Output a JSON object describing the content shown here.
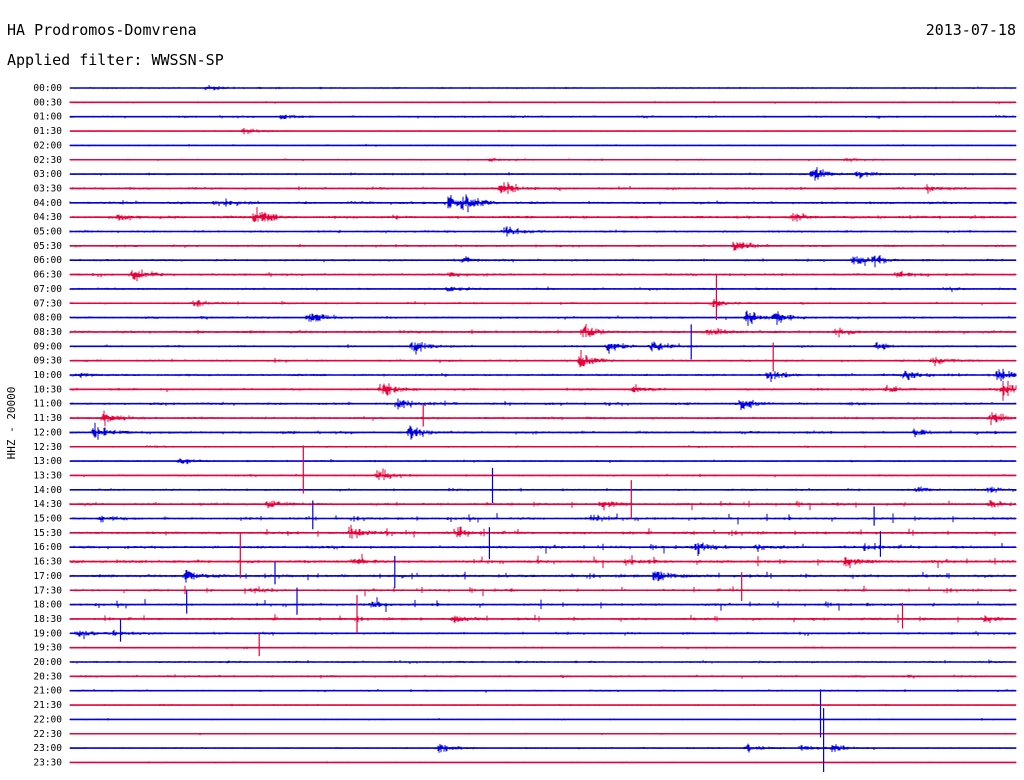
{
  "header": {
    "station": "HA Prodromos-Domvrena",
    "date": "2013-07-18",
    "filter": "Applied filter: WWSSN-SP"
  },
  "channel_label": "HHZ - 20000",
  "colors": {
    "even_trace": "#0000e0",
    "odd_trace": "#e8003a",
    "background": "#ffffff"
  },
  "chart_data": {
    "type": "line",
    "title": "HA Prodromos-Domvrena",
    "ylabel": "HHZ - 20000",
    "grid": false,
    "row_labels": [
      "00:00",
      "00:30",
      "01:00",
      "01:30",
      "02:00",
      "02:30",
      "03:00",
      "03:30",
      "04:00",
      "04:30",
      "05:00",
      "05:30",
      "06:00",
      "06:30",
      "07:00",
      "07:30",
      "08:00",
      "08:30",
      "09:00",
      "09:30",
      "10:00",
      "10:30",
      "11:00",
      "11:30",
      "12:00",
      "12:30",
      "13:00",
      "13:30",
      "14:00",
      "14:30",
      "15:00",
      "15:30",
      "16:00",
      "16:30",
      "17:00",
      "17:30",
      "18:00",
      "18:30",
      "19:00",
      "19:30",
      "20:00",
      "20:30",
      "21:00",
      "21:30",
      "22:00",
      "22:30",
      "23:00",
      "23:30"
    ],
    "trace_minutes": 30,
    "noise_level": [
      0.8,
      0.8,
      1.0,
      0.6,
      0.7,
      0.8,
      1.0,
      1.4,
      1.5,
      1.6,
      1.2,
      1.1,
      1.2,
      1.3,
      1.1,
      1.1,
      1.2,
      1.5,
      1.1,
      1.2,
      1.3,
      1.3,
      1.4,
      1.3,
      1.4,
      0.9,
      1.0,
      1.0,
      1.1,
      1.4,
      1.4,
      1.5,
      1.6,
      1.7,
      1.6,
      1.2,
      1.3,
      1.4,
      1.3,
      0.9,
      1.1,
      1.3,
      1.0,
      0.7,
      0.6,
      0.7,
      0.8,
      0.6
    ],
    "events": [
      {
        "row": 0,
        "min": 4.4,
        "amp": 3
      },
      {
        "row": 2,
        "min": 6.7,
        "amp": 5
      },
      {
        "row": 2,
        "min": 13.8,
        "amp": 2
      },
      {
        "row": 3,
        "min": 5.5,
        "amp": 5
      },
      {
        "row": 5,
        "min": 13.3,
        "amp": 3
      },
      {
        "row": 5,
        "min": 24.6,
        "amp": 3
      },
      {
        "row": 6,
        "min": 23.6,
        "amp": 12
      },
      {
        "row": 6,
        "min": 25.0,
        "amp": 6
      },
      {
        "row": 7,
        "min": 13.7,
        "amp": 12
      },
      {
        "row": 7,
        "min": 27.2,
        "amp": 5
      },
      {
        "row": 8,
        "min": 4.6,
        "amp": 5
      },
      {
        "row": 8,
        "min": 12.0,
        "amp": 12
      },
      {
        "row": 8,
        "min": 12.5,
        "amp": 10
      },
      {
        "row": 9,
        "min": 1.6,
        "amp": 5
      },
      {
        "row": 9,
        "min": 5.9,
        "amp": 14
      },
      {
        "row": 9,
        "min": 22.9,
        "amp": 5
      },
      {
        "row": 10,
        "min": 13.8,
        "amp": 10
      },
      {
        "row": 11,
        "min": 21.1,
        "amp": 11
      },
      {
        "row": 12,
        "min": 24.9,
        "amp": 11
      },
      {
        "row": 12,
        "min": 25.5,
        "amp": 6
      },
      {
        "row": 12,
        "min": 12.5,
        "amp": 4
      },
      {
        "row": 13,
        "min": 2.0,
        "amp": 10
      },
      {
        "row": 13,
        "min": 12.1,
        "amp": 4
      },
      {
        "row": 13,
        "min": 26.2,
        "amp": 5
      },
      {
        "row": 14,
        "min": 12.0,
        "amp": 4
      },
      {
        "row": 14,
        "min": 27.9,
        "amp": 3
      },
      {
        "row": 15,
        "min": 3.9,
        "amp": 6
      },
      {
        "row": 15,
        "min": 20.4,
        "amp": 6
      },
      {
        "row": 16,
        "min": 7.6,
        "amp": 10
      },
      {
        "row": 16,
        "min": 21.5,
        "amp": 10
      },
      {
        "row": 16,
        "min": 22.4,
        "amp": 10
      },
      {
        "row": 17,
        "min": 16.3,
        "amp": 12
      },
      {
        "row": 17,
        "min": 20.3,
        "amp": 7
      },
      {
        "row": 17,
        "min": 24.3,
        "amp": 6
      },
      {
        "row": 18,
        "min": 10.9,
        "amp": 11
      },
      {
        "row": 18,
        "min": 17.1,
        "amp": 8
      },
      {
        "row": 18,
        "min": 18.5,
        "amp": 10
      },
      {
        "row": 18,
        "min": 25.6,
        "amp": 6
      },
      {
        "row": 19,
        "min": 16.2,
        "amp": 12
      },
      {
        "row": 19,
        "min": 27.4,
        "amp": 7
      },
      {
        "row": 20,
        "min": 0.3,
        "amp": 4
      },
      {
        "row": 20,
        "min": 22.2,
        "amp": 8
      },
      {
        "row": 20,
        "min": 26.5,
        "amp": 10
      },
      {
        "row": 20,
        "min": 29.4,
        "amp": 12
      },
      {
        "row": 21,
        "min": 9.9,
        "amp": 12
      },
      {
        "row": 21,
        "min": 17.9,
        "amp": 5
      },
      {
        "row": 21,
        "min": 25.9,
        "amp": 5
      },
      {
        "row": 21,
        "min": 29.6,
        "amp": 14
      },
      {
        "row": 22,
        "min": 10.4,
        "amp": 12
      },
      {
        "row": 22,
        "min": 21.3,
        "amp": 10
      },
      {
        "row": 23,
        "min": 1.1,
        "amp": 10
      },
      {
        "row": 23,
        "min": 29.2,
        "amp": 9
      },
      {
        "row": 24,
        "min": 0.8,
        "amp": 12
      },
      {
        "row": 24,
        "min": 10.8,
        "amp": 12
      },
      {
        "row": 24,
        "min": 26.8,
        "amp": 5
      },
      {
        "row": 26,
        "min": 3.5,
        "amp": 5
      },
      {
        "row": 27,
        "min": 9.8,
        "amp": 12
      },
      {
        "row": 28,
        "min": 26.9,
        "amp": 4
      },
      {
        "row": 28,
        "min": 29.2,
        "amp": 5
      },
      {
        "row": 29,
        "min": 6.3,
        "amp": 7
      },
      {
        "row": 29,
        "min": 16.9,
        "amp": 6
      },
      {
        "row": 29,
        "min": 29.2,
        "amp": 6
      },
      {
        "row": 30,
        "min": 1.0,
        "amp": 5
      },
      {
        "row": 30,
        "min": 16.6,
        "amp": 6
      },
      {
        "row": 31,
        "min": 8.9,
        "amp": 12
      },
      {
        "row": 31,
        "min": 12.3,
        "amp": 6
      },
      {
        "row": 32,
        "min": 19.9,
        "amp": 10
      },
      {
        "row": 32,
        "min": 21.8,
        "amp": 5
      },
      {
        "row": 32,
        "min": 25.2,
        "amp": 5
      },
      {
        "row": 33,
        "min": 24.6,
        "amp": 9
      },
      {
        "row": 33,
        "min": 9.0,
        "amp": 5
      },
      {
        "row": 33,
        "min": 17.6,
        "amp": 5
      },
      {
        "row": 34,
        "min": 3.7,
        "amp": 10
      },
      {
        "row": 34,
        "min": 18.6,
        "amp": 12
      },
      {
        "row": 35,
        "min": 5.8,
        "amp": 5
      },
      {
        "row": 36,
        "min": 9.6,
        "amp": 6
      },
      {
        "row": 37,
        "min": 12.2,
        "amp": 5
      },
      {
        "row": 37,
        "min": 29.0,
        "amp": 5
      },
      {
        "row": 38,
        "min": 0.3,
        "amp": 6
      },
      {
        "row": 38,
        "min": 1.4,
        "amp": 4
      },
      {
        "row": 46,
        "min": 11.7,
        "amp": 8
      },
      {
        "row": 46,
        "min": 21.5,
        "amp": 6
      },
      {
        "row": 46,
        "min": 23.2,
        "amp": 5
      },
      {
        "row": 46,
        "min": 24.2,
        "amp": 6
      }
    ],
    "spikes": [
      {
        "row": 27,
        "min": 7.4,
        "amp": 30
      },
      {
        "row": 28,
        "min": 13.4,
        "amp": 22
      },
      {
        "row": 29,
        "min": 17.8,
        "amp": 24
      },
      {
        "row": 30,
        "min": 7.7,
        "amp": 18
      },
      {
        "row": 32,
        "min": 13.3,
        "amp": 20
      },
      {
        "row": 33,
        "min": 5.4,
        "amp": 28
      },
      {
        "row": 34,
        "min": 10.3,
        "amp": 20
      },
      {
        "row": 35,
        "min": 21.3,
        "amp": 18
      },
      {
        "row": 36,
        "min": 3.7,
        "amp": 15
      },
      {
        "row": 36,
        "min": 7.2,
        "amp": 17
      },
      {
        "row": 37,
        "min": 9.1,
        "amp": 24
      },
      {
        "row": 37,
        "min": 26.4,
        "amp": 16
      },
      {
        "row": 15,
        "min": 20.5,
        "amp": 28
      },
      {
        "row": 18,
        "min": 19.7,
        "amp": 22
      },
      {
        "row": 19,
        "min": 22.3,
        "amp": 18
      },
      {
        "row": 23,
        "min": 11.2,
        "amp": 14
      },
      {
        "row": 30,
        "min": 25.5,
        "amp": 12
      },
      {
        "row": 32,
        "min": 25.7,
        "amp": 16
      },
      {
        "row": 34,
        "min": 6.5,
        "amp": 14
      },
      {
        "row": 38,
        "min": 1.6,
        "amp": 14
      },
      {
        "row": 39,
        "min": 6.0,
        "amp": 14
      },
      {
        "row": 46,
        "min": 23.9,
        "amp": 40
      },
      {
        "row": 44,
        "min": 23.8,
        "amp": 30
      }
    ],
    "bursts": [
      {
        "row": 30,
        "from": 6.6,
        "to": 30,
        "density": 0.35
      },
      {
        "row": 31,
        "from": 6.0,
        "to": 30,
        "density": 0.28
      },
      {
        "row": 33,
        "from": 9.0,
        "to": 30,
        "density": 0.3
      },
      {
        "row": 34,
        "from": 4.0,
        "to": 30,
        "density": 0.25
      },
      {
        "row": 35,
        "from": 0.5,
        "to": 30,
        "density": 0.3
      },
      {
        "row": 36,
        "from": 0.5,
        "to": 30,
        "density": 0.35
      },
      {
        "row": 37,
        "from": 0.5,
        "to": 30,
        "density": 0.3
      },
      {
        "row": 29,
        "from": 12.0,
        "to": 30,
        "density": 0.22
      },
      {
        "row": 32,
        "from": 10.0,
        "to": 30,
        "density": 0.2
      }
    ]
  }
}
